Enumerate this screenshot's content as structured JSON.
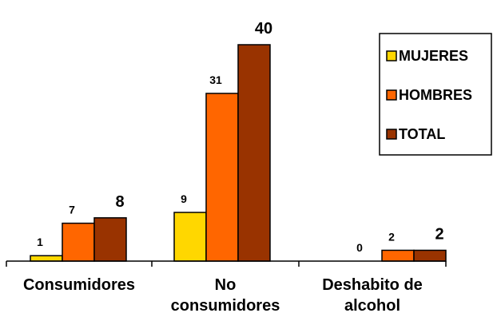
{
  "chart_data": {
    "type": "bar",
    "categories": [
      "Consumidores",
      "No consumidores",
      "Deshabito de alcohol"
    ],
    "category_lines": [
      [
        "Consumidores"
      ],
      [
        "No",
        "consumidores"
      ],
      [
        "Deshabito de",
        "alcohol"
      ]
    ],
    "series": [
      {
        "name": "MUJERES",
        "values": [
          1,
          9,
          0
        ],
        "color": "#FFD700"
      },
      {
        "name": "HOMBRES",
        "values": [
          7,
          31,
          2
        ],
        "color": "#FF6600"
      },
      {
        "name": "TOTAL",
        "values": [
          8,
          40,
          2
        ],
        "color": "#993300"
      }
    ],
    "ylim": [
      0,
      42
    ],
    "grid": false,
    "legend_position": "top-right"
  }
}
